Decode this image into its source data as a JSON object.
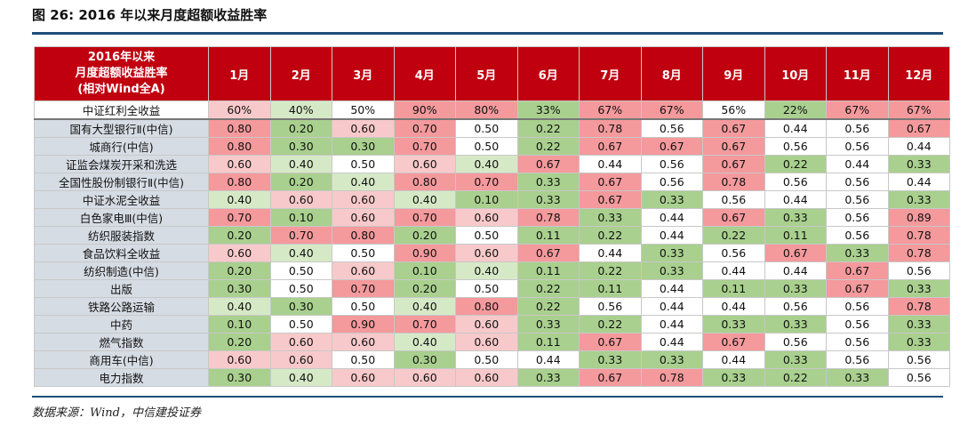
{
  "title": "图 26: 2016 年以来月度超额收益胜率",
  "source": "数据来源：Wind，中信建投证券",
  "colors": {
    "header_bg": "#c0000f",
    "rule": "#1f4e79",
    "label_bg": "#d6dce4",
    "high_strong": "#f4999c",
    "high_light": "#f8c9ca",
    "low_strong": "#a9d08e",
    "low_light": "#d6e9c6"
  },
  "chart_data": {
    "type": "table",
    "corner_header": [
      "2016年以来",
      "月度超额收益胜率",
      "(相对Wind全A)"
    ],
    "columns": [
      "1月",
      "2月",
      "3月",
      "4月",
      "5月",
      "6月",
      "7月",
      "8月",
      "9月",
      "10月",
      "11月",
      "12月"
    ],
    "benchmark": {
      "name": "中证红利全收益",
      "values": [
        "60%",
        "40%",
        "50%",
        "90%",
        "80%",
        "33%",
        "67%",
        "67%",
        "56%",
        "22%",
        "67%",
        "67%"
      ]
    },
    "rows": [
      {
        "name": "国有大型银行Ⅱ(中信)",
        "values": [
          "0.80",
          "0.20",
          "0.60",
          "0.70",
          "0.50",
          "0.22",
          "0.78",
          "0.56",
          "0.67",
          "0.44",
          "0.56",
          "0.67"
        ]
      },
      {
        "name": "城商行(中信)",
        "values": [
          "0.80",
          "0.30",
          "0.30",
          "0.70",
          "0.50",
          "0.22",
          "0.67",
          "0.67",
          "0.67",
          "0.56",
          "0.56",
          "0.44"
        ]
      },
      {
        "name": "证监会煤炭开采和洗选",
        "values": [
          "0.60",
          "0.40",
          "0.50",
          "0.60",
          "0.40",
          "0.67",
          "0.44",
          "0.56",
          "0.67",
          "0.22",
          "0.44",
          "0.33"
        ]
      },
      {
        "name": "全国性股份制银行Ⅱ(中信)",
        "values": [
          "0.80",
          "0.20",
          "0.40",
          "0.80",
          "0.70",
          "0.33",
          "0.67",
          "0.56",
          "0.78",
          "0.56",
          "0.56",
          "0.44"
        ]
      },
      {
        "name": "中证水泥全收益",
        "values": [
          "0.40",
          "0.60",
          "0.60",
          "0.40",
          "0.10",
          "0.33",
          "0.67",
          "0.33",
          "0.56",
          "0.44",
          "0.56",
          "0.33"
        ]
      },
      {
        "name": "白色家电Ⅲ(中信)",
        "values": [
          "0.70",
          "0.10",
          "0.60",
          "0.70",
          "0.60",
          "0.78",
          "0.33",
          "0.44",
          "0.67",
          "0.33",
          "0.56",
          "0.89"
        ]
      },
      {
        "name": "纺织服装指数",
        "values": [
          "0.20",
          "0.70",
          "0.80",
          "0.20",
          "0.50",
          "0.11",
          "0.22",
          "0.44",
          "0.22",
          "0.11",
          "0.56",
          "0.78"
        ]
      },
      {
        "name": "食品饮料全收益",
        "values": [
          "0.60",
          "0.40",
          "0.50",
          "0.90",
          "0.60",
          "0.67",
          "0.44",
          "0.33",
          "0.56",
          "0.67",
          "0.33",
          "0.78"
        ]
      },
      {
        "name": "纺织制造(中信)",
        "values": [
          "0.20",
          "0.50",
          "0.60",
          "0.10",
          "0.40",
          "0.11",
          "0.22",
          "0.33",
          "0.44",
          "0.44",
          "0.67",
          "0.56"
        ]
      },
      {
        "name": "出版",
        "values": [
          "0.30",
          "0.50",
          "0.70",
          "0.20",
          "0.50",
          "0.22",
          "0.11",
          "0.44",
          "0.11",
          "0.33",
          "0.67",
          "0.33"
        ]
      },
      {
        "name": "铁路公路运输",
        "values": [
          "0.40",
          "0.30",
          "0.50",
          "0.40",
          "0.80",
          "0.22",
          "0.56",
          "0.44",
          "0.44",
          "0.56",
          "0.56",
          "0.78"
        ]
      },
      {
        "name": "中药",
        "values": [
          "0.10",
          "0.50",
          "0.90",
          "0.70",
          "0.60",
          "0.33",
          "0.22",
          "0.44",
          "0.33",
          "0.33",
          "0.56",
          "0.33"
        ]
      },
      {
        "name": "燃气指数",
        "values": [
          "0.20",
          "0.60",
          "0.60",
          "0.40",
          "0.60",
          "0.11",
          "0.67",
          "0.44",
          "0.67",
          "0.56",
          "0.56",
          "0.33"
        ]
      },
      {
        "name": "商用车(中信)",
        "values": [
          "0.60",
          "0.60",
          "0.50",
          "0.30",
          "0.50",
          "0.44",
          "0.33",
          "0.33",
          "0.44",
          "0.33",
          "0.56",
          "0.56"
        ]
      },
      {
        "name": "电力指数",
        "values": [
          "0.30",
          "0.40",
          "0.60",
          "0.60",
          "0.60",
          "0.33",
          "0.67",
          "0.78",
          "0.33",
          "0.22",
          "0.33",
          "0.56"
        ]
      }
    ]
  }
}
